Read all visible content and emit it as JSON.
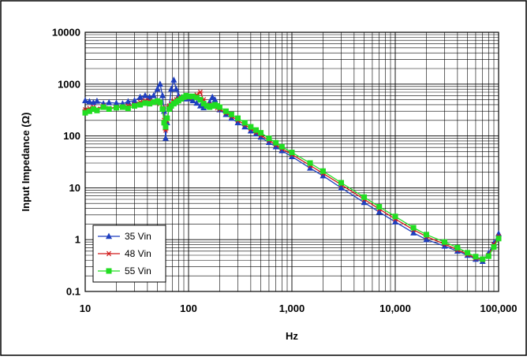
{
  "chart_data": {
    "type": "line",
    "title": "",
    "xlabel": "Hz",
    "ylabel": "Input Impedance (Ω)",
    "xscale": "log",
    "yscale": "log",
    "xlim": [
      10,
      100000
    ],
    "ylim": [
      0.1,
      10000
    ],
    "x_ticks": [
      10,
      100,
      1000,
      10000,
      100000
    ],
    "x_tick_labels": [
      "10",
      "100",
      "1,000",
      "10,000",
      "100,000"
    ],
    "y_ticks": [
      0.1,
      1,
      10,
      100,
      1000,
      10000
    ],
    "y_tick_labels": [
      "0.1",
      "1",
      "10",
      "100",
      "1000",
      "10000"
    ],
    "grid": true,
    "legend_position": "bottom-left",
    "series": [
      {
        "name": "35 Vin",
        "color": "#1f3fbf",
        "marker": "triangle",
        "x": [
          10,
          11,
          12,
          13,
          15,
          17,
          20,
          23,
          26,
          30,
          34,
          38,
          42,
          46,
          50,
          53,
          56,
          58,
          60,
          62,
          65,
          68,
          72,
          76,
          80,
          85,
          90,
          95,
          100,
          110,
          120,
          130,
          140,
          150,
          160,
          170,
          180,
          190,
          200,
          230,
          260,
          300,
          350,
          400,
          450,
          500,
          600,
          700,
          800,
          1000,
          1500,
          2000,
          3000,
          5000,
          7000,
          10000,
          15000,
          20000,
          30000,
          40000,
          50000,
          60000,
          70000,
          80000,
          90000,
          100000
        ],
        "y": [
          480,
          460,
          440,
          470,
          420,
          440,
          430,
          420,
          460,
          480,
          560,
          600,
          560,
          600,
          800,
          1000,
          600,
          300,
          90,
          180,
          380,
          800,
          1200,
          800,
          600,
          550,
          520,
          520,
          520,
          480,
          430,
          380,
          350,
          380,
          450,
          560,
          500,
          380,
          320,
          260,
          220,
          180,
          150,
          125,
          110,
          95,
          75,
          62,
          52,
          40,
          24,
          17,
          10,
          5.2,
          3.4,
          2.2,
          1.35,
          1.0,
          0.75,
          0.6,
          0.5,
          0.42,
          0.38,
          0.55,
          0.85,
          1.3
        ]
      },
      {
        "name": "48 Vin",
        "color": "#d11a1a",
        "marker": "asterisk",
        "x": [
          10,
          11,
          12,
          13,
          15,
          17,
          20,
          23,
          26,
          30,
          34,
          38,
          42,
          46,
          50,
          53,
          56,
          58,
          60,
          62,
          65,
          68,
          72,
          76,
          80,
          85,
          90,
          95,
          100,
          110,
          120,
          130,
          140,
          150,
          160,
          170,
          180,
          190,
          200,
          230,
          260,
          300,
          350,
          400,
          450,
          500,
          600,
          700,
          800,
          1000,
          1500,
          2000,
          3000,
          5000,
          7000,
          10000,
          15000,
          20000,
          30000,
          40000,
          50000,
          60000,
          70000,
          80000,
          90000,
          100000
        ],
        "y": [
          320,
          340,
          360,
          330,
          380,
          340,
          360,
          370,
          380,
          400,
          450,
          480,
          470,
          460,
          440,
          420,
          350,
          200,
          130,
          200,
          380,
          420,
          480,
          500,
          520,
          560,
          560,
          570,
          560,
          560,
          620,
          700,
          500,
          400,
          380,
          400,
          380,
          350,
          330,
          280,
          240,
          200,
          165,
          138,
          118,
          104,
          82,
          68,
          57,
          44,
          27,
          19,
          11.5,
          6.0,
          3.9,
          2.5,
          1.55,
          1.15,
          0.82,
          0.64,
          0.52,
          0.44,
          0.41,
          0.5,
          0.8,
          1.15
        ]
      },
      {
        "name": "55 Vin",
        "color": "#22dd22",
        "marker": "square",
        "x": [
          10,
          11,
          12,
          13,
          15,
          17,
          20,
          23,
          26,
          30,
          34,
          38,
          42,
          46,
          50,
          53,
          56,
          58,
          60,
          62,
          65,
          68,
          72,
          76,
          80,
          85,
          90,
          95,
          100,
          110,
          120,
          130,
          140,
          150,
          160,
          170,
          180,
          190,
          200,
          230,
          260,
          300,
          350,
          400,
          450,
          500,
          600,
          700,
          800,
          1000,
          1500,
          2000,
          3000,
          5000,
          7000,
          10000,
          15000,
          20000,
          30000,
          40000,
          50000,
          60000,
          70000,
          80000,
          90000,
          100000
        ],
        "y": [
          280,
          300,
          330,
          310,
          360,
          330,
          350,
          360,
          340,
          380,
          400,
          430,
          420,
          450,
          470,
          440,
          330,
          180,
          150,
          220,
          330,
          380,
          420,
          450,
          480,
          520,
          560,
          600,
          580,
          580,
          550,
          500,
          420,
          380,
          360,
          380,
          400,
          380,
          360,
          300,
          260,
          220,
          180,
          150,
          130,
          115,
          90,
          74,
          62,
          48,
          30,
          21,
          12.5,
          6.6,
          4.3,
          2.8,
          1.7,
          1.25,
          0.9,
          0.7,
          0.56,
          0.47,
          0.42,
          0.48,
          0.72,
          1.05
        ]
      }
    ]
  }
}
